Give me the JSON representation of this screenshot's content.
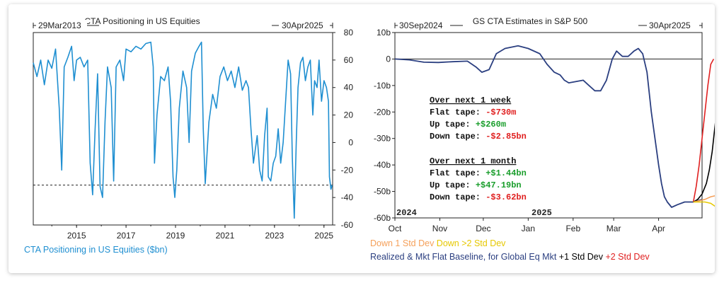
{
  "chart_data": [
    {
      "type": "line",
      "title": "CTA Positioning in US Equities",
      "date_start": "29Mar2013",
      "date_end": "30Apr2025",
      "x_ticks": [
        "2015",
        "2017",
        "2019",
        "2021",
        "2023",
        "2025"
      ],
      "y_ticks": [
        "80",
        "60",
        "40",
        "20",
        "0",
        "-20",
        "-40",
        "-60"
      ],
      "ylim": [
        -60,
        80
      ],
      "xlim": [
        2013.25,
        2025.35
      ],
      "reference_line": -31,
      "legend": "CTA Positioning in US Equities ($bn)",
      "series": [
        {
          "color": "#1f8fd1",
          "points": [
            [
              2013.25,
              58
            ],
            [
              2013.4,
              48
            ],
            [
              2013.55,
              60
            ],
            [
              2013.7,
              42
            ],
            [
              2013.85,
              60
            ],
            [
              2014.0,
              54
            ],
            [
              2014.15,
              68
            ],
            [
              2014.3,
              25
            ],
            [
              2014.4,
              -20
            ],
            [
              2014.5,
              55
            ],
            [
              2014.65,
              62
            ],
            [
              2014.8,
              70
            ],
            [
              2014.9,
              45
            ],
            [
              2015.0,
              60
            ],
            [
              2015.15,
              62
            ],
            [
              2015.3,
              55
            ],
            [
              2015.45,
              60
            ],
            [
              2015.55,
              -15
            ],
            [
              2015.65,
              -38
            ],
            [
              2015.75,
              10
            ],
            [
              2015.85,
              50
            ],
            [
              2015.95,
              -32
            ],
            [
              2016.05,
              -40
            ],
            [
              2016.15,
              15
            ],
            [
              2016.25,
              55
            ],
            [
              2016.4,
              40
            ],
            [
              2016.5,
              -28
            ],
            [
              2016.6,
              55
            ],
            [
              2016.75,
              60
            ],
            [
              2016.9,
              45
            ],
            [
              2017.0,
              68
            ],
            [
              2017.2,
              66
            ],
            [
              2017.4,
              70
            ],
            [
              2017.6,
              68
            ],
            [
              2017.8,
              72
            ],
            [
              2018.0,
              73
            ],
            [
              2018.1,
              55
            ],
            [
              2018.15,
              -15
            ],
            [
              2018.25,
              20
            ],
            [
              2018.4,
              48
            ],
            [
              2018.55,
              45
            ],
            [
              2018.7,
              55
            ],
            [
              2018.8,
              30
            ],
            [
              2018.9,
              -25
            ],
            [
              2018.97,
              -40
            ],
            [
              2019.05,
              -20
            ],
            [
              2019.15,
              25
            ],
            [
              2019.3,
              52
            ],
            [
              2019.45,
              40
            ],
            [
              2019.55,
              0
            ],
            [
              2019.65,
              52
            ],
            [
              2019.8,
              65
            ],
            [
              2019.95,
              70
            ],
            [
              2020.05,
              73
            ],
            [
              2020.12,
              10
            ],
            [
              2020.2,
              -30
            ],
            [
              2020.35,
              15
            ],
            [
              2020.5,
              35
            ],
            [
              2020.65,
              25
            ],
            [
              2020.8,
              48
            ],
            [
              2020.95,
              55
            ],
            [
              2021.1,
              45
            ],
            [
              2021.25,
              52
            ],
            [
              2021.4,
              40
            ],
            [
              2021.55,
              55
            ],
            [
              2021.7,
              38
            ],
            [
              2021.85,
              45
            ],
            [
              2021.95,
              40
            ],
            [
              2022.05,
              10
            ],
            [
              2022.15,
              -15
            ],
            [
              2022.3,
              5
            ],
            [
              2022.4,
              -20
            ],
            [
              2022.5,
              -28
            ],
            [
              2022.6,
              5
            ],
            [
              2022.7,
              25
            ],
            [
              2022.75,
              -25
            ],
            [
              2022.85,
              -28
            ],
            [
              2022.95,
              -15
            ],
            [
              2023.05,
              -10
            ],
            [
              2023.15,
              10
            ],
            [
              2023.25,
              -15
            ],
            [
              2023.35,
              0
            ],
            [
              2023.45,
              30
            ],
            [
              2023.55,
              60
            ],
            [
              2023.65,
              50
            ],
            [
              2023.72,
              -10
            ],
            [
              2023.8,
              -55
            ],
            [
              2023.88,
              0
            ],
            [
              2023.95,
              40
            ],
            [
              2024.05,
              58
            ],
            [
              2024.15,
              62
            ],
            [
              2024.25,
              45
            ],
            [
              2024.35,
              55
            ],
            [
              2024.45,
              60
            ],
            [
              2024.55,
              20
            ],
            [
              2024.62,
              45
            ],
            [
              2024.72,
              40
            ],
            [
              2024.8,
              60
            ],
            [
              2024.9,
              30
            ],
            [
              2025.0,
              45
            ],
            [
              2025.1,
              40
            ],
            [
              2025.18,
              30
            ],
            [
              2025.22,
              -25
            ],
            [
              2025.28,
              -34
            ],
            [
              2025.33,
              -31
            ]
          ]
        }
      ]
    },
    {
      "type": "line",
      "title": "GS CTA Estimates in S&P 500",
      "date_start": "30Sep2024",
      "date_end": "30Apr2025",
      "x_ticks": [
        "Oct",
        "Nov",
        "Dec",
        "Jan",
        "Feb",
        "Mar",
        "Apr"
      ],
      "y_ticks": [
        "10b",
        "0",
        "-10b",
        "-20b",
        "-30b",
        "-40b",
        "-50b",
        "-60b"
      ],
      "year_labels": [
        "2024",
        "2025"
      ],
      "ylim": [
        -60,
        10
      ],
      "xlim": [
        0,
        212
      ],
      "reference_line": 0,
      "annotations": {
        "week_header": "Over next 1 week",
        "month_header": "Over next 1 month",
        "week_rows": [
          {
            "label": "Flat tape: ",
            "value": "-$730m",
            "color": "#e02020"
          },
          {
            "label": "Up tape: ",
            "value": "+$260m",
            "color": "#1a9e2c"
          },
          {
            "label": "Down tape: ",
            "value": "-$2.85bn",
            "color": "#e02020"
          }
        ],
        "month_rows": [
          {
            "label": "Flat tape: ",
            "value": "+$1.44bn",
            "color": "#1a9e2c"
          },
          {
            "label": "Up tape: ",
            "value": "+$47.19bn",
            "color": "#1a9e2c"
          },
          {
            "label": "Down tape: ",
            "value": "-$3.62bn",
            "color": "#e02020"
          }
        ]
      },
      "legend": {
        "line1": [
          {
            "text": "Down 1 Std Dev ",
            "color": "#f5a05a"
          },
          {
            "text": "Down >2 Std Dev",
            "color": "#e6c800"
          }
        ],
        "line2": [
          {
            "text": "Realized & Mkt Flat Baseline, for Global Eq Mkt ",
            "color": "#2b3f80"
          },
          {
            "text": "+1 Std Dev ",
            "color": "#000000"
          },
          {
            "text": "+2 Std Dev",
            "color": "#e02020"
          }
        ]
      },
      "series": [
        {
          "name": "Realized & Mkt Flat Baseline, for Global Eq Mkt",
          "color": "#2b3f80",
          "points": [
            [
              0,
              0
            ],
            [
              10,
              -0.3
            ],
            [
              20,
              -1.2
            ],
            [
              30,
              -1.3
            ],
            [
              40,
              -1.0
            ],
            [
              50,
              -0.8
            ],
            [
              56,
              -3
            ],
            [
              60,
              -5
            ],
            [
              65,
              -4
            ],
            [
              70,
              2
            ],
            [
              76,
              4
            ],
            [
              85,
              5
            ],
            [
              92,
              4
            ],
            [
              100,
              2
            ],
            [
              105,
              -2
            ],
            [
              110,
              -5
            ],
            [
              114,
              -6
            ],
            [
              117,
              -8
            ],
            [
              120,
              -9
            ],
            [
              125,
              -8.5
            ],
            [
              130,
              -8
            ],
            [
              134,
              -10
            ],
            [
              138,
              -12
            ],
            [
              142,
              -12
            ],
            [
              146,
              -8
            ],
            [
              150,
              0
            ],
            [
              153,
              3
            ],
            [
              157,
              1
            ],
            [
              161,
              1
            ],
            [
              165,
              3
            ],
            [
              168,
              4
            ],
            [
              171,
              2
            ],
            [
              174,
              -5
            ],
            [
              177,
              -20
            ],
            [
              180,
              -32
            ],
            [
              182,
              -40
            ],
            [
              184,
              -47
            ],
            [
              186,
              -52
            ],
            [
              188,
              -54
            ],
            [
              191,
              -56
            ],
            [
              195,
              -55
            ],
            [
              200,
              -54
            ],
            [
              206,
              -54
            ],
            [
              212,
              -53
            ]
          ]
        },
        {
          "name": "+2 Std Dev",
          "color": "#e02020",
          "points": [
            [
              206,
              -54
            ],
            [
              208,
              -48
            ],
            [
              210,
              -40
            ],
            [
              212,
              -30
            ],
            [
              214,
              -20
            ],
            [
              216,
              -10
            ],
            [
              218,
              -2
            ],
            [
              220,
              0
            ]
          ]
        },
        {
          "name": "+1 Std Dev",
          "color": "#000000",
          "points": [
            [
              206,
              -54
            ],
            [
              209,
              -53
            ],
            [
              212,
              -51
            ],
            [
              215,
              -47
            ],
            [
              217,
              -42
            ],
            [
              219,
              -35
            ],
            [
              221,
              -25
            ],
            [
              222,
              -20
            ]
          ]
        },
        {
          "name": "Down 1 Std Dev",
          "color": "#f5a05a",
          "points": [
            [
              206,
              -54
            ],
            [
              210,
              -53.5
            ],
            [
              214,
              -53
            ],
            [
              218,
              -52
            ],
            [
              222,
              -51.5
            ]
          ]
        },
        {
          "name": "Down >2 Std Dev",
          "color": "#e6c800",
          "points": [
            [
              206,
              -54
            ],
            [
              210,
              -54
            ],
            [
              214,
              -54
            ],
            [
              218,
              -54.5
            ],
            [
              222,
              -56
            ]
          ]
        }
      ]
    }
  ]
}
